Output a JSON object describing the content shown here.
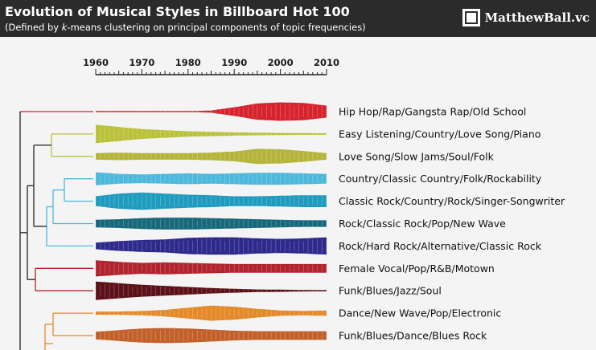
{
  "header": {
    "title": "Evolution of Musical Styles in Billboard Hot 100",
    "subtitle_before": "(Defined by ",
    "subtitle_em": "k",
    "subtitle_after": "-means clustering on principal components of topic frequencies)",
    "brand": "MatthewBall.vc"
  },
  "colors": {
    "header_bg": "#2b2b2b",
    "background": "#f4f4f4"
  },
  "chart_data": {
    "type": "area",
    "subtype": "streamgraph-violin",
    "title": "Evolution of Musical Styles in Billboard Hot 100",
    "x_axis": {
      "min": 1960,
      "max": 2010,
      "ticks": [
        1960,
        1970,
        1980,
        1990,
        2000,
        2010
      ]
    },
    "x": [
      1960,
      1965,
      1970,
      1975,
      1980,
      1985,
      1990,
      1995,
      2000,
      2005,
      2010
    ],
    "series": [
      {
        "name": "Hip Hop/Rap/Gangsta Rap/Old School",
        "color": "#d7232d",
        "group": "red",
        "values": [
          0.02,
          0.02,
          0.02,
          0.02,
          0.03,
          0.1,
          0.4,
          0.75,
          0.85,
          0.8,
          0.55
        ]
      },
      {
        "name": "Easy Listening/Country/Love Song/Piano",
        "color": "#b9c23a",
        "group": "yellow",
        "values": [
          0.85,
          0.65,
          0.45,
          0.35,
          0.25,
          0.2,
          0.15,
          0.12,
          0.1,
          0.08,
          0.07
        ]
      },
      {
        "name": "Love Song/Slow Jams/Soul/Folk",
        "color": "#b5b43a",
        "group": "yellow",
        "values": [
          0.3,
          0.35,
          0.3,
          0.3,
          0.3,
          0.35,
          0.45,
          0.7,
          0.65,
          0.5,
          0.3
        ]
      },
      {
        "name": "Country/Classic Country/Folk/Rockability",
        "color": "#4cb9dc",
        "group": "cyan",
        "values": [
          0.6,
          0.45,
          0.4,
          0.45,
          0.5,
          0.45,
          0.5,
          0.55,
          0.55,
          0.5,
          0.45
        ]
      },
      {
        "name": "Classic Rock/Country/Rock/Singer-Songwriter",
        "color": "#1e9bbe",
        "group": "cyan",
        "values": [
          0.45,
          0.7,
          0.8,
          0.7,
          0.6,
          0.55,
          0.45,
          0.45,
          0.5,
          0.55,
          0.55
        ]
      },
      {
        "name": "Rock/Classic Rock/Pop/New Wave",
        "color": "#16687a",
        "group": "cyan",
        "values": [
          0.35,
          0.4,
          0.5,
          0.55,
          0.55,
          0.5,
          0.45,
          0.4,
          0.35,
          0.3,
          0.3
        ]
      },
      {
        "name": "Rock/Hard Rock/Alternative/Classic Rock",
        "color": "#2d2a8c",
        "group": "cyan",
        "values": [
          0.3,
          0.45,
          0.55,
          0.6,
          0.75,
          0.8,
          0.8,
          0.7,
          0.65,
          0.7,
          0.8
        ]
      },
      {
        "name": "Female Vocal/Pop/R&B/Motown",
        "color": "#b1232d",
        "group": "darkred",
        "values": [
          0.75,
          0.6,
          0.5,
          0.55,
          0.5,
          0.45,
          0.4,
          0.4,
          0.4,
          0.4,
          0.4
        ]
      },
      {
        "name": "Funk/Blues/Jazz/Soul",
        "color": "#5c1118",
        "group": "darkred",
        "values": [
          0.85,
          0.7,
          0.55,
          0.45,
          0.35,
          0.25,
          0.18,
          0.12,
          0.1,
          0.07,
          0.05
        ]
      },
      {
        "name": "Dance/New Wave/Pop/Electronic",
        "color": "#e48a2a",
        "group": "orange",
        "values": [
          0.15,
          0.15,
          0.2,
          0.3,
          0.5,
          0.7,
          0.6,
          0.4,
          0.25,
          0.2,
          0.25
        ]
      },
      {
        "name": "Funk/Blues/Dance/Blues Rock",
        "color": "#c2602a",
        "group": "orange",
        "values": [
          0.35,
          0.5,
          0.65,
          0.7,
          0.65,
          0.55,
          0.45,
          0.4,
          0.4,
          0.4,
          0.4
        ]
      }
    ]
  }
}
